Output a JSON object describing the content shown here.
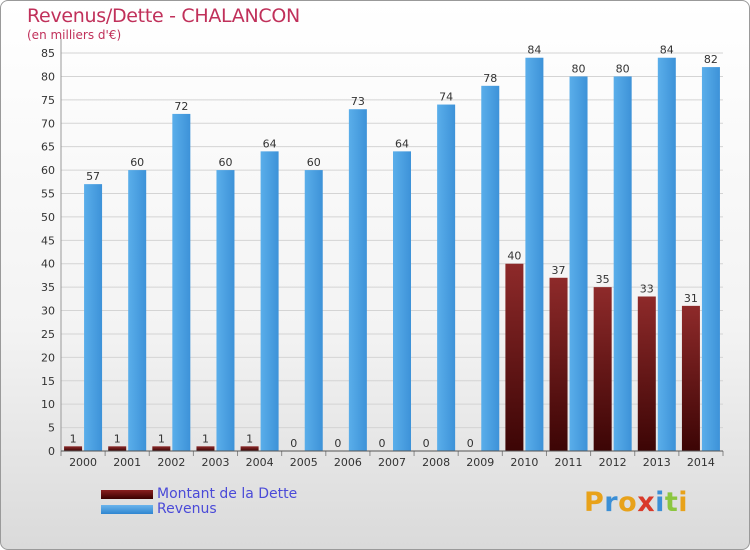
{
  "chart_data": {
    "type": "bar",
    "title": "Revenus/Dette - CHALANCON",
    "subtitle": "(en milliers d'€)",
    "categories": [
      "2000",
      "2001",
      "2002",
      "2003",
      "2004",
      "2005",
      "2006",
      "2007",
      "2008",
      "2009",
      "2010",
      "2011",
      "2012",
      "2013",
      "2014"
    ],
    "series": [
      {
        "name": "Montant de la Dette",
        "color": "#7a1c1c",
        "values": [
          1,
          1,
          1,
          1,
          1,
          0,
          0,
          0,
          0,
          0,
          40,
          37,
          35,
          33,
          31
        ]
      },
      {
        "name": "Revenus",
        "color": "#4fa3e6",
        "values": [
          57,
          60,
          72,
          60,
          64,
          60,
          73,
          64,
          74,
          78,
          84,
          80,
          80,
          84,
          82
        ]
      }
    ],
    "ylim": [
      0,
      88
    ],
    "yticks": [
      0,
      5,
      10,
      15,
      20,
      25,
      30,
      35,
      40,
      45,
      50,
      55,
      60,
      65,
      70,
      75,
      80,
      85
    ],
    "grid": true,
    "legend_position": "bottom-left"
  },
  "logo": {
    "letters": [
      "P",
      "r",
      "o",
      "x",
      "i",
      "t",
      "i"
    ],
    "colors": [
      "#e8a21a",
      "#3b8fd6",
      "#e8a21a",
      "#d93a2a",
      "#3b8fd6",
      "#8cc63f",
      "#e8a21a"
    ]
  }
}
